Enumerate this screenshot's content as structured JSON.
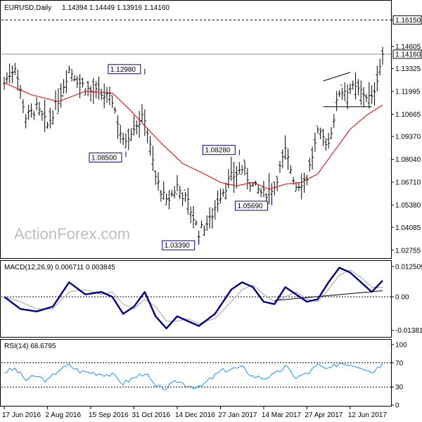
{
  "chart_data": [
    {
      "type": "candlestick",
      "title": "EURUSD,Daily",
      "ohlc_text": "1.14394 1.14449 1.13916 1.14160",
      "watermark": "ActionForex.com",
      "ylim": [
        1.025,
        1.169
      ],
      "y_ticks": [
        "1.16150",
        "1.14605",
        "1.13325",
        "1.11995",
        "1.10665",
        "1.09370",
        "1.08040",
        "1.06710",
        "1.05380",
        "1.04085",
        "1.02755"
      ],
      "y_tick_values": [
        1.1615,
        1.14605,
        1.13325,
        1.11995,
        1.10665,
        1.0937,
        1.0804,
        1.0671,
        1.0538,
        1.04085,
        1.02755
      ],
      "current_price": "1.14160",
      "current_price_value": 1.1416,
      "resistance_level": "1.16150",
      "resistance_value": 1.1615,
      "ma_color": "#e02020",
      "bar_color": "#000000",
      "annotations": [
        {
          "text": "1.12980",
          "index": 52,
          "value": 1.1298
        },
        {
          "text": "1.08500",
          "index": 45,
          "value": 1.085
        },
        {
          "text": "1.08280",
          "index": 87,
          "value": 1.0828
        },
        {
          "text": "1.03390",
          "index": 72,
          "value": 1.0339
        },
        {
          "text": "1.05690",
          "index": 99,
          "value": 1.0569
        }
      ],
      "price_points": [
        [
          0,
          1.125
        ],
        [
          4,
          1.135
        ],
        [
          8,
          1.105
        ],
        [
          12,
          1.11
        ],
        [
          16,
          1.1
        ],
        [
          20,
          1.115
        ],
        [
          24,
          1.133
        ],
        [
          28,
          1.125
        ],
        [
          32,
          1.12
        ],
        [
          36,
          1.118
        ],
        [
          40,
          1.115
        ],
        [
          44,
          1.09
        ],
        [
          48,
          1.1
        ],
        [
          52,
          1.105
        ],
        [
          56,
          1.07
        ],
        [
          60,
          1.055
        ],
        [
          64,
          1.065
        ],
        [
          68,
          1.055
        ],
        [
          72,
          1.038
        ],
        [
          76,
          1.045
        ],
        [
          80,
          1.06
        ],
        [
          84,
          1.07
        ],
        [
          88,
          1.075
        ],
        [
          92,
          1.065
        ],
        [
          96,
          1.06
        ],
        [
          100,
          1.065
        ],
        [
          104,
          1.085
        ],
        [
          108,
          1.065
        ],
        [
          112,
          1.07
        ],
        [
          116,
          1.095
        ],
        [
          120,
          1.09
        ],
        [
          124,
          1.12
        ],
        [
          128,
          1.122
        ],
        [
          132,
          1.12
        ],
        [
          136,
          1.115
        ],
        [
          140,
          1.1416
        ]
      ],
      "ma_points": [
        [
          0,
          1.125
        ],
        [
          10,
          1.118
        ],
        [
          20,
          1.114
        ],
        [
          30,
          1.12
        ],
        [
          40,
          1.119
        ],
        [
          46,
          1.11
        ],
        [
          52,
          1.1
        ],
        [
          58,
          1.09
        ],
        [
          66,
          1.078
        ],
        [
          74,
          1.072
        ],
        [
          80,
          1.067
        ],
        [
          86,
          1.065
        ],
        [
          92,
          1.067
        ],
        [
          98,
          1.063
        ],
        [
          104,
          1.066
        ],
        [
          110,
          1.067
        ],
        [
          116,
          1.072
        ],
        [
          122,
          1.085
        ],
        [
          128,
          1.098
        ],
        [
          134,
          1.106
        ],
        [
          140,
          1.112
        ]
      ],
      "channel_upper": [
        [
          118,
          1.126
        ],
        [
          128,
          1.131
        ]
      ],
      "channel_lower": [
        [
          118,
          1.111
        ],
        [
          136,
          1.111
        ]
      ]
    },
    {
      "type": "line",
      "title": "MACD(12,26,9) 0.006711 0.003845",
      "ylim": [
        -0.0165,
        0.0145
      ],
      "y_ticks": [
        "0.012509",
        "0.00",
        "-0.013813"
      ],
      "y_tick_values": [
        0.012509,
        0.0,
        -0.013813
      ],
      "series": [
        {
          "name": "",
          "color": "#00008b",
          "points": [
            [
              0,
              0.0
            ],
            [
              6,
              -0.005
            ],
            [
              12,
              -0.006
            ],
            [
              18,
              -0.004
            ],
            [
              24,
              0.006
            ],
            [
              30,
              0.001
            ],
            [
              36,
              0.002
            ],
            [
              40,
              0.0
            ],
            [
              44,
              -0.007
            ],
            [
              48,
              -0.004
            ],
            [
              52,
              0.002
            ],
            [
              56,
              -0.008
            ],
            [
              60,
              -0.013
            ],
            [
              64,
              -0.008
            ],
            [
              68,
              -0.01
            ],
            [
              72,
              -0.012
            ],
            [
              78,
              -0.007
            ],
            [
              84,
              0.003
            ],
            [
              88,
              0.006
            ],
            [
              92,
              0.004
            ],
            [
              96,
              -0.002
            ],
            [
              100,
              -0.003
            ],
            [
              104,
              0.004
            ],
            [
              108,
              0.001
            ],
            [
              112,
              -0.002
            ],
            [
              116,
              -0.001
            ],
            [
              120,
              0.006
            ],
            [
              124,
              0.012
            ],
            [
              128,
              0.01
            ],
            [
              132,
              0.006
            ],
            [
              136,
              0.002
            ],
            [
              140,
              0.0067
            ]
          ]
        },
        {
          "name": "",
          "color": "#a0a0a0",
          "points": [
            [
              0,
              0.0
            ],
            [
              6,
              -0.002
            ],
            [
              12,
              -0.005
            ],
            [
              18,
              -0.005
            ],
            [
              24,
              0.002
            ],
            [
              30,
              0.003
            ],
            [
              36,
              0.001
            ],
            [
              40,
              0.002
            ],
            [
              44,
              -0.003
            ],
            [
              48,
              -0.005
            ],
            [
              52,
              -0.001
            ],
            [
              56,
              -0.004
            ],
            [
              60,
              -0.01
            ],
            [
              64,
              -0.01
            ],
            [
              68,
              -0.009
            ],
            [
              72,
              -0.011
            ],
            [
              78,
              -0.009
            ],
            [
              84,
              -0.002
            ],
            [
              88,
              0.003
            ],
            [
              92,
              0.005
            ],
            [
              96,
              0.001
            ],
            [
              100,
              -0.002
            ],
            [
              104,
              0.0
            ],
            [
              108,
              0.002
            ],
            [
              112,
              -0.001
            ],
            [
              116,
              -0.002
            ],
            [
              120,
              0.003
            ],
            [
              124,
              0.009
            ],
            [
              128,
              0.011
            ],
            [
              132,
              0.008
            ],
            [
              136,
              0.004
            ],
            [
              140,
              0.0038
            ]
          ]
        }
      ],
      "trendline": [
        [
          100,
          -0.0015
        ],
        [
          140,
          0.0025
        ]
      ]
    },
    {
      "type": "line",
      "title": "RSI(14) 68.6795",
      "ylim": [
        0,
        100
      ],
      "y_ticks": [
        "100",
        "70",
        "30",
        "0"
      ],
      "y_tick_values": [
        100,
        70,
        30,
        0
      ],
      "series": [
        {
          "name": "",
          "color": "#1e90ff",
          "points": [
            [
              0,
              55
            ],
            [
              4,
              60
            ],
            [
              8,
              42
            ],
            [
              12,
              48
            ],
            [
              16,
              40
            ],
            [
              20,
              58
            ],
            [
              24,
              66
            ],
            [
              28,
              56
            ],
            [
              32,
              54
            ],
            [
              36,
              52
            ],
            [
              40,
              50
            ],
            [
              44,
              36
            ],
            [
              48,
              45
            ],
            [
              52,
              54
            ],
            [
              56,
              30
            ],
            [
              60,
              28
            ],
            [
              64,
              40
            ],
            [
              68,
              33
            ],
            [
              72,
              28
            ],
            [
              76,
              42
            ],
            [
              80,
              56
            ],
            [
              84,
              60
            ],
            [
              88,
              62
            ],
            [
              92,
              48
            ],
            [
              96,
              45
            ],
            [
              100,
              50
            ],
            [
              104,
              64
            ],
            [
              108,
              46
            ],
            [
              112,
              52
            ],
            [
              116,
              66
            ],
            [
              120,
              58
            ],
            [
              124,
              70
            ],
            [
              128,
              68
            ],
            [
              132,
              64
            ],
            [
              136,
              55
            ],
            [
              140,
              68.7
            ]
          ]
        }
      ]
    }
  ],
  "x_axis": {
    "labels": [
      "17 Jun 2016",
      "2 Aug 2016",
      "15 Sep 2016",
      "31 Oct 2016",
      "14 Dec 2016",
      "27 Jan 2017",
      "14 Mar 2017",
      "27 Apr 2017",
      "12 Jun 2017"
    ],
    "indices": [
      0,
      16,
      32,
      48,
      64,
      80,
      96,
      112,
      128
    ]
  }
}
